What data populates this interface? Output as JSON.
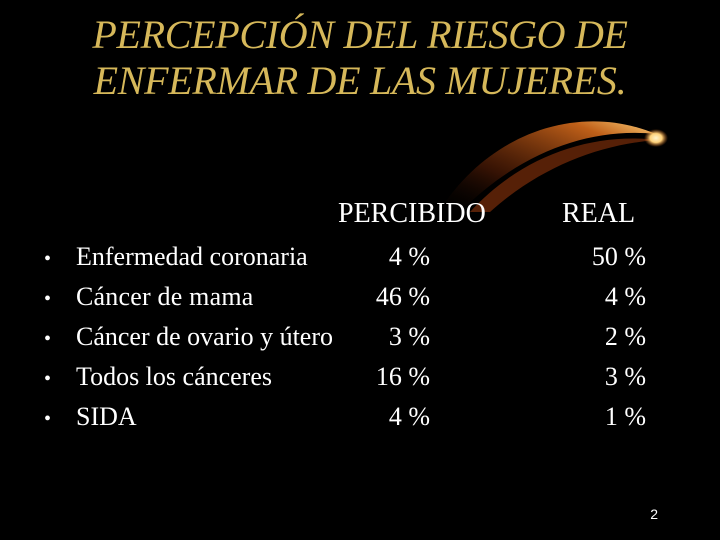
{
  "title": {
    "line1": "PERCEPCIÓN DEL RIESGO DE",
    "line2": "ENFERMAR DE LAS MUJERES."
  },
  "columns": {
    "perceived": "PERCIBIDO",
    "real": "REAL"
  },
  "rows": [
    {
      "label": "Enfermedad coronaria",
      "perceived": "4 %",
      "real": "50 %"
    },
    {
      "label": "Cáncer de mama",
      "perceived": "46 %",
      "real": "4 %"
    },
    {
      "label": "Cáncer de ovario y útero",
      "perceived": "3 %",
      "real": "2 %"
    },
    {
      "label": "Todos los cánceres",
      "perceived": "16 %",
      "real": "3 %"
    },
    {
      "label": "SIDA",
      "perceived": "4 %",
      "real": "1 %"
    }
  ],
  "bullet": "•",
  "page_number": "2",
  "colors": {
    "background": "#000000",
    "title": "#d6b85a",
    "text": "#ffffff",
    "comet_head": "#ffd27a",
    "comet_tail": "#c9651a"
  }
}
